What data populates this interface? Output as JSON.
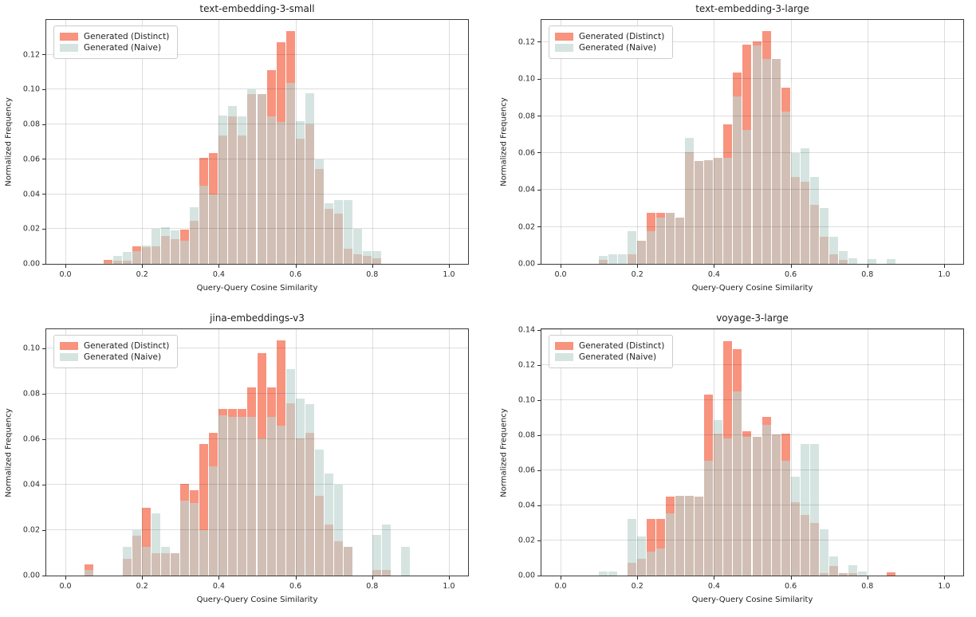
{
  "figure": {
    "background": "#ffffff"
  },
  "colors": {
    "distinct": "#f8937e",
    "naive": "#d5e4e0",
    "overlap": "#d1bfb5",
    "grid": "#d9d9d9",
    "spine": "#3a3a3a"
  },
  "legend": {
    "items": [
      {
        "label": "Generated (Distinct)",
        "color": "#f8937e"
      },
      {
        "label": "Generated (Naive)",
        "color": "#d5e4e0"
      }
    ]
  },
  "chart_data": [
    {
      "type": "bar",
      "subtype": "overlaid-histogram",
      "title": "text-embedding-3-small",
      "xlabel": "Query-Query Cosine Similarity",
      "ylabel": "Normalized Frequency",
      "xlim": [
        -0.05,
        1.05
      ],
      "ylim": [
        0,
        0.14
      ],
      "xticks": [
        0.0,
        0.2,
        0.4,
        0.6,
        0.8,
        1.0
      ],
      "yticks": [
        0.0,
        0.02,
        0.04,
        0.06,
        0.08,
        0.1,
        0.12
      ],
      "grid": true,
      "legend_position": "upper-left",
      "bin_start": 0.1,
      "bin_width": 0.025,
      "series": [
        {
          "name": "Generated (Distinct)",
          "values": [
            0.0025,
            0.002,
            0.002,
            0.01,
            0.0095,
            0.01,
            0.016,
            0.014,
            0.0195,
            0.0245,
            0.061,
            0.0635,
            0.0735,
            0.0845,
            0.0735,
            0.0975,
            0.0975,
            0.111,
            0.127,
            0.1335,
            0.072,
            0.08,
            0.0545,
            0.0315,
            0.029,
            0.0085,
            0.0055,
            0.0045,
            0.003
          ]
        },
        {
          "name": "Generated (Naive)",
          "values": [
            0.0005,
            0.0045,
            0.007,
            0.0075,
            0.0105,
            0.02,
            0.021,
            0.019,
            0.0135,
            0.0325,
            0.045,
            0.04,
            0.085,
            0.0905,
            0.0845,
            0.1,
            0.0975,
            0.0845,
            0.0815,
            0.104,
            0.082,
            0.098,
            0.06,
            0.035,
            0.0365,
            0.0365,
            0.02,
            0.0075,
            0.0075
          ]
        }
      ]
    },
    {
      "type": "bar",
      "subtype": "overlaid-histogram",
      "title": "text-embedding-3-large",
      "xlabel": "Query-Query Cosine Similarity",
      "ylabel": "Normalized Frequency",
      "xlim": [
        -0.05,
        1.05
      ],
      "ylim": [
        0,
        0.132
      ],
      "xticks": [
        0.0,
        0.2,
        0.4,
        0.6,
        0.8,
        1.0
      ],
      "yticks": [
        0.0,
        0.02,
        0.04,
        0.06,
        0.08,
        0.1,
        0.12
      ],
      "grid": true,
      "legend_position": "upper-left",
      "bin_start": 0.1,
      "bin_width": 0.025,
      "series": [
        {
          "name": "Generated (Distinct)",
          "values": [
            0.0022,
            0,
            0,
            0.005,
            0.0125,
            0.0275,
            0.0275,
            0.0275,
            0.025,
            0.0605,
            0.0555,
            0.056,
            0.0575,
            0.0755,
            0.1035,
            0.1185,
            0.1205,
            0.126,
            0.111,
            0.0955,
            0.047,
            0.0445,
            0.032,
            0.0145,
            0.005,
            0.002,
            0,
            0,
            0,
            0,
            0
          ]
        },
        {
          "name": "Generated (Naive)",
          "values": [
            0.0045,
            0.005,
            0.005,
            0.0175,
            0.0125,
            0.0175,
            0.025,
            0.0275,
            0.025,
            0.068,
            0.0555,
            0.056,
            0.0575,
            0.0575,
            0.0905,
            0.0725,
            0.118,
            0.111,
            0.111,
            0.0825,
            0.06,
            0.0625,
            0.047,
            0.03,
            0.0145,
            0.007,
            0.003,
            0,
            0.0025,
            0,
            0.0025
          ]
        }
      ]
    },
    {
      "type": "bar",
      "subtype": "overlaid-histogram",
      "title": "jina-embeddings-v3",
      "xlabel": "Query-Query Cosine Similarity",
      "ylabel": "Normalized Frequency",
      "xlim": [
        -0.05,
        1.05
      ],
      "ylim": [
        0,
        0.1085
      ],
      "xticks": [
        0.0,
        0.2,
        0.4,
        0.6,
        0.8,
        1.0
      ],
      "yticks": [
        0.0,
        0.02,
        0.04,
        0.06,
        0.08,
        0.1
      ],
      "grid": true,
      "legend_position": "upper-left",
      "bin_start": 0.05,
      "bin_width": 0.025,
      "series": [
        {
          "name": "Generated (Distinct)",
          "values": [
            0.005,
            0,
            0,
            0,
            0.0075,
            0.0175,
            0.03,
            0.01,
            0.01,
            0.01,
            0.0405,
            0.0375,
            0.058,
            0.063,
            0.0735,
            0.0735,
            0.0735,
            0.083,
            0.098,
            0.083,
            0.1035,
            0.076,
            0.0605,
            0.063,
            0.035,
            0.0225,
            0.015,
            0.0125,
            0,
            0,
            0.0025,
            0.0025,
            0,
            0
          ]
        },
        {
          "name": "Generated (Naive)",
          "values": [
            0.0025,
            0,
            0,
            0,
            0.0125,
            0.02,
            0.0125,
            0.0275,
            0.0125,
            0.01,
            0.033,
            0.032,
            0.02,
            0.048,
            0.0705,
            0.07,
            0.07,
            0.07,
            0.0605,
            0.07,
            0.066,
            0.091,
            0.078,
            0.0755,
            0.0555,
            0.045,
            0.04,
            0.0125,
            0,
            0,
            0.018,
            0.0225,
            0,
            0.0125
          ]
        }
      ]
    },
    {
      "type": "bar",
      "subtype": "overlaid-histogram",
      "title": "voyage-3-large",
      "xlabel": "Query-Query Cosine Similarity",
      "ylabel": "Normalized Frequency",
      "xlim": [
        -0.05,
        1.05
      ],
      "ylim": [
        0,
        0.1405
      ],
      "xticks": [
        0.0,
        0.2,
        0.4,
        0.6,
        0.8,
        1.0
      ],
      "yticks": [
        0.0,
        0.02,
        0.04,
        0.06,
        0.08,
        0.1,
        0.12,
        0.14
      ],
      "grid": true,
      "legend_position": "upper-left",
      "bin_start": 0.1,
      "bin_width": 0.025,
      "series": [
        {
          "name": "Generated (Distinct)",
          "values": [
            0,
            0,
            0,
            0.0075,
            0.0095,
            0.0325,
            0.0325,
            0.045,
            0.0455,
            0.0455,
            0.045,
            0.103,
            0.081,
            0.1335,
            0.129,
            0.0825,
            0.079,
            0.0905,
            0.0805,
            0.081,
            0.042,
            0.0345,
            0.03,
            0.0015,
            0.0055,
            0.0015,
            0.0015,
            0,
            0,
            0,
            0.002
          ]
        },
        {
          "name": "Generated (Naive)",
          "values": [
            0.0022,
            0.0022,
            0,
            0.0325,
            0.0225,
            0.0135,
            0.0155,
            0.0355,
            0.0455,
            0.0455,
            0.045,
            0.0655,
            0.0885,
            0.078,
            0.105,
            0.079,
            0.079,
            0.086,
            0.0805,
            0.0655,
            0.0565,
            0.075,
            0.075,
            0.0265,
            0.011,
            0.0015,
            0.006,
            0.0025,
            0,
            0,
            0
          ]
        }
      ]
    }
  ]
}
